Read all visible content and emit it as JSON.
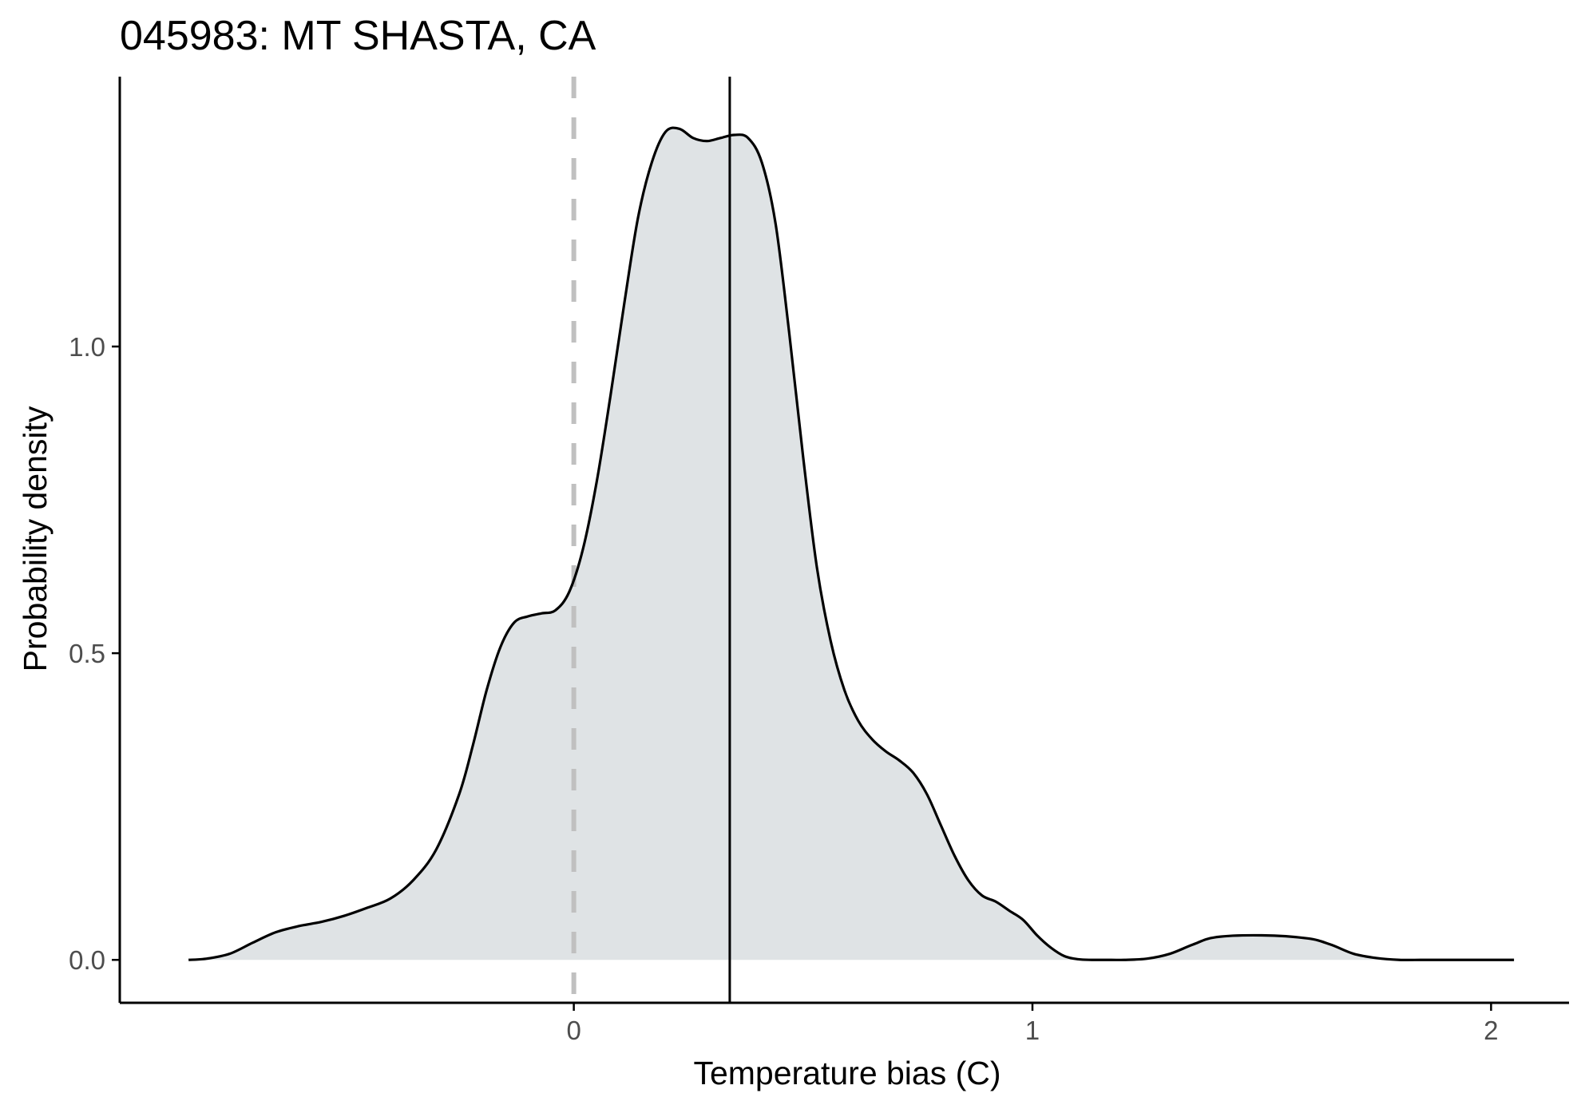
{
  "chart_data": {
    "type": "area",
    "title": "045983: MT SHASTA, CA",
    "xlabel": "Temperature bias (C)",
    "ylabel": "Probability density",
    "xlim": [
      -0.99,
      2.17
    ],
    "ylim": [
      -0.07,
      1.44
    ],
    "x_ticks": [
      0,
      1,
      2
    ],
    "x_tick_labels": [
      "0",
      "1",
      "2"
    ],
    "y_ticks": [
      0.0,
      0.5,
      1.0
    ],
    "y_tick_labels": [
      "0.0",
      "0.5",
      "1.0"
    ],
    "grid": false,
    "legend": "none",
    "reference_lines": {
      "zero_line_x": 0,
      "mean_line_x": 0.34
    },
    "colors": {
      "fill": "#dfe3e5",
      "curve": "#000000",
      "zero_line": "#c0c0c0",
      "mean_line": "#000000",
      "axis": "#000000",
      "tick_text": "#4d4d4d"
    },
    "series": [
      {
        "x": [
          -0.84,
          -0.8,
          -0.75,
          -0.7,
          -0.65,
          -0.6,
          -0.55,
          -0.5,
          -0.45,
          -0.4,
          -0.35,
          -0.3,
          -0.25,
          -0.22,
          -0.19,
          -0.16,
          -0.13,
          -0.1,
          -0.07,
          -0.04,
          -0.01,
          0.02,
          0.05,
          0.08,
          0.11,
          0.14,
          0.17,
          0.2,
          0.23,
          0.26,
          0.29,
          0.32,
          0.35,
          0.38,
          0.41,
          0.44,
          0.47,
          0.5,
          0.53,
          0.56,
          0.59,
          0.62,
          0.65,
          0.68,
          0.71,
          0.74,
          0.77,
          0.8,
          0.83,
          0.86,
          0.89,
          0.92,
          0.95,
          0.98,
          1.01,
          1.04,
          1.07,
          1.1,
          1.13,
          1.16,
          1.2,
          1.25,
          1.3,
          1.35,
          1.4,
          1.5,
          1.6,
          1.65,
          1.7,
          1.75,
          1.8,
          1.85,
          1.9,
          1.95,
          2.0,
          2.05
        ],
        "y": [
          0.0,
          0.002,
          0.01,
          0.028,
          0.045,
          0.055,
          0.062,
          0.072,
          0.085,
          0.1,
          0.13,
          0.18,
          0.27,
          0.35,
          0.44,
          0.51,
          0.55,
          0.56,
          0.565,
          0.57,
          0.6,
          0.67,
          0.78,
          0.92,
          1.07,
          1.21,
          1.3,
          1.35,
          1.355,
          1.34,
          1.335,
          1.34,
          1.345,
          1.34,
          1.3,
          1.2,
          1.02,
          0.82,
          0.64,
          0.52,
          0.44,
          0.39,
          0.36,
          0.34,
          0.325,
          0.305,
          0.27,
          0.22,
          0.17,
          0.13,
          0.105,
          0.095,
          0.08,
          0.065,
          0.04,
          0.02,
          0.006,
          0.001,
          0.0,
          0.0,
          0.0,
          0.002,
          0.01,
          0.025,
          0.037,
          0.04,
          0.035,
          0.025,
          0.01,
          0.003,
          0.0,
          0.0,
          0.0,
          0.0,
          0.0,
          0.0
        ]
      }
    ]
  }
}
